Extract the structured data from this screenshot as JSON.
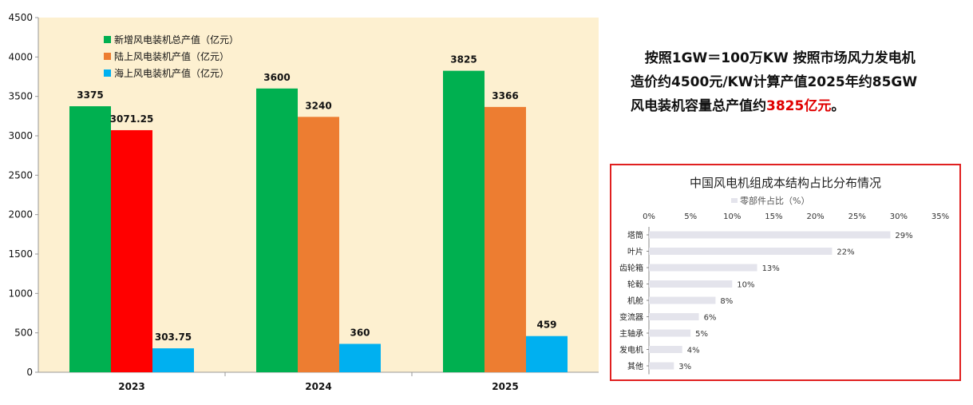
{
  "chart_data": [
    {
      "type": "bar",
      "categories": [
        "2023",
        "2024",
        "2025"
      ],
      "series": [
        {
          "name": "新增风电装机总产值（亿元）",
          "values": [
            3375,
            3600,
            3825
          ],
          "color": "#00b050"
        },
        {
          "name": "陆上风电装机产值（亿元）",
          "values": [
            3071.25,
            3240,
            3366
          ],
          "color": "#ed7d31"
        },
        {
          "name": "海上风电装机产值（亿元）",
          "values": [
            303.75,
            360,
            459
          ],
          "color": "#00b0f0"
        }
      ],
      "data_labels": [
        [
          "3375",
          "3600",
          "3825"
        ],
        [
          "3071.25",
          "3240",
          "3366"
        ],
        [
          "303.75",
          "360",
          "459"
        ]
      ],
      "special_colors": {
        "1-0": "#ff0000"
      },
      "ylim": [
        0,
        4500
      ],
      "yticks": [
        "0",
        "500",
        "1000",
        "1500",
        "2000",
        "2500",
        "3000",
        "3500",
        "4000",
        "4500"
      ],
      "plot_background": "#fdf0d0",
      "legend_position": "top-left",
      "grid": false
    },
    {
      "type": "bar",
      "orientation": "horizontal",
      "title": "中国风电机组成本结构占比分布情况",
      "legend": "零部件占比（%）",
      "categories": [
        "塔筒",
        "叶片",
        "齿轮箱",
        "轮毂",
        "机舱",
        "变流器",
        "主轴承",
        "发电机",
        "其他"
      ],
      "values": [
        29,
        22,
        13,
        10,
        8,
        6,
        5,
        4,
        3
      ],
      "value_labels": [
        "29%",
        "22%",
        "13%",
        "10%",
        "8%",
        "6%",
        "5%",
        "4%",
        "3%"
      ],
      "xticks": [
        "0%",
        "5%",
        "10%",
        "15%",
        "20%",
        "25%",
        "30%",
        "35%"
      ],
      "xlim": [
        0,
        35
      ],
      "bar_color": "#e4e4ec",
      "grid": false
    }
  ],
  "side_text": {
    "line1": "按照1GW＝100万KW 按照市场风力发电机",
    "line2": "造价约4500元/KW计算产值2025年约85GW",
    "line3_prefix": "风电装机容量总产值约",
    "line3_highlight": "3825亿元",
    "line3_suffix": "。"
  },
  "colors": {
    "highlight": "#e00000",
    "box_border": "#e02020"
  }
}
